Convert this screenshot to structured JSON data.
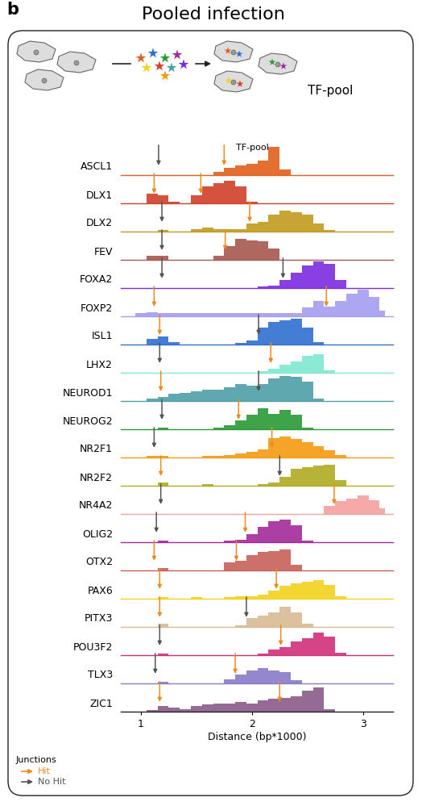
{
  "chart_data": {
    "type": "area",
    "panel": "b",
    "title": "Pooled infection",
    "pool_label": "TF-pool",
    "x_label": "Distance (bp*1000)",
    "x": [
      0.9,
      1.0,
      1.1,
      1.2,
      1.3,
      1.4,
      1.5,
      1.6,
      1.7,
      1.8,
      1.9,
      2.0,
      2.1,
      2.2,
      2.3,
      2.4,
      2.5,
      2.6,
      2.7,
      2.8,
      2.9,
      3.0,
      3.1,
      3.2
    ],
    "xlim": [
      0.82,
      3.27
    ],
    "xticks": [
      1,
      2,
      3
    ],
    "ylim": [
      0,
      1.2
    ],
    "tick_labels": "x",
    "legend": "lower left",
    "junction_legend": {
      "title": "Junctions",
      "hit_label": "Hit",
      "no_hit_label": "No Hit",
      "hit_color": "#f08a1e",
      "no_hit_color": "#555555"
    },
    "series": [
      {
        "name": "ASCL1",
        "color": "#e0601c",
        "values": [
          0,
          0,
          0,
          0,
          0,
          0,
          0,
          0,
          0.1,
          0.25,
          0.35,
          0.4,
          0.5,
          1.0,
          0.2,
          0,
          0,
          0,
          0,
          0,
          0,
          0,
          0,
          0
        ],
        "junctions": [
          {
            "x": 1.16,
            "hit": false
          },
          {
            "x": 1.75,
            "hit": true
          }
        ]
      },
      {
        "name": "DLX1",
        "color": "#d0402a",
        "values": [
          0,
          0,
          0.35,
          0.3,
          0.05,
          0,
          0.3,
          0.6,
          0.7,
          0.8,
          0.6,
          0.05,
          0,
          0,
          0,
          0,
          0,
          0,
          0,
          0,
          0,
          0,
          0,
          0
        ],
        "junctions": [
          {
            "x": 1.12,
            "hit": true
          },
          {
            "x": 1.54,
            "hit": true
          }
        ]
      },
      {
        "name": "DLX2",
        "color": "#c19a1d",
        "values": [
          0,
          0,
          0,
          0.05,
          0,
          0,
          0.1,
          0.15,
          0.1,
          0.1,
          0.1,
          0.3,
          0.35,
          0.6,
          0.75,
          0.7,
          0.6,
          0.3,
          0.05,
          0,
          0,
          0,
          0,
          0
        ],
        "junctions": [
          {
            "x": 1.19,
            "hit": false
          },
          {
            "x": 1.98,
            "hit": true
          }
        ]
      },
      {
        "name": "FEV",
        "color": "#a8564e",
        "values": [
          0,
          0,
          0.15,
          0.15,
          0,
          0,
          0,
          0,
          0.15,
          0.5,
          0.75,
          0.7,
          0.65,
          0.4,
          0,
          0,
          0,
          0,
          0,
          0,
          0,
          0,
          0,
          0
        ],
        "junctions": [
          {
            "x": 1.19,
            "hit": false
          },
          {
            "x": 1.76,
            "hit": true
          }
        ]
      },
      {
        "name": "FOXA2",
        "color": "#7b2be0",
        "values": [
          0,
          0,
          0,
          0,
          0,
          0,
          0,
          0,
          0,
          0,
          0,
          0,
          0.05,
          0.1,
          0.3,
          0.55,
          0.8,
          0.95,
          0.85,
          0.3,
          0,
          0,
          0,
          0
        ],
        "junctions": [
          {
            "x": 1.19,
            "hit": false
          },
          {
            "x": 2.28,
            "hit": false
          }
        ]
      },
      {
        "name": "FOXP2",
        "color": "#a49cf0",
        "values": [
          0,
          0.1,
          0.15,
          0.1,
          0.1,
          0.1,
          0.1,
          0.1,
          0.1,
          0.1,
          0.1,
          0.1,
          0.1,
          0.1,
          0.1,
          0.1,
          0.3,
          0.55,
          0.35,
          0.55,
          0.8,
          0.95,
          0.7,
          0.2
        ],
        "junctions": [
          {
            "x": 1.12,
            "hit": true
          },
          {
            "x": 2.67,
            "hit": true
          }
        ]
      },
      {
        "name": "ISL1",
        "color": "#2e6fd0",
        "values": [
          0,
          0,
          0.2,
          0.3,
          0.1,
          0,
          0,
          0,
          0,
          0,
          0.05,
          0.15,
          0.6,
          0.8,
          0.85,
          0.9,
          0.6,
          0.1,
          0,
          0,
          0,
          0,
          0,
          0
        ],
        "junctions": [
          {
            "x": 1.17,
            "hit": true
          },
          {
            "x": 2.06,
            "hit": false
          }
        ]
      },
      {
        "name": "LHX2",
        "color": "#7ee8d2",
        "values": [
          0,
          0,
          0,
          0,
          0,
          0,
          0,
          0,
          0,
          0,
          0,
          0,
          0.05,
          0.15,
          0.3,
          0.4,
          0.6,
          0.65,
          0.1,
          0,
          0,
          0,
          0,
          0
        ],
        "junctions": [
          {
            "x": 1.17,
            "hit": false
          },
          {
            "x": 2.17,
            "hit": true
          }
        ]
      },
      {
        "name": "NEUROD1",
        "color": "#4f9fa8",
        "values": [
          0,
          0,
          0.1,
          0.15,
          0.25,
          0.3,
          0.35,
          0.4,
          0.4,
          0.5,
          0.6,
          0.55,
          0.6,
          0.8,
          0.9,
          0.85,
          0.7,
          0.1,
          0,
          0,
          0,
          0,
          0,
          0
        ],
        "junctions": [
          {
            "x": 1.18,
            "hit": true
          },
          {
            "x": 2.06,
            "hit": false
          }
        ]
      },
      {
        "name": "NEUROG2",
        "color": "#2a9a35",
        "values": [
          0,
          0,
          0,
          0.05,
          0,
          0,
          0,
          0,
          0.05,
          0.15,
          0.3,
          0.5,
          0.75,
          0.55,
          0.7,
          0.5,
          0.05,
          0,
          0,
          0,
          0,
          0,
          0,
          0
        ],
        "junctions": [
          {
            "x": 1.19,
            "hit": false
          },
          {
            "x": 1.88,
            "hit": true
          }
        ]
      },
      {
        "name": "NR2F1",
        "color": "#f59a10",
        "values": [
          0,
          0,
          0.05,
          0.05,
          0,
          0,
          0,
          0.05,
          0.05,
          0.1,
          0.15,
          0.2,
          0.3,
          0.7,
          0.75,
          0.65,
          0.55,
          0.4,
          0.25,
          0.1,
          0,
          0,
          0,
          0
        ],
        "junctions": [
          {
            "x": 1.12,
            "hit": false
          },
          {
            "x": 2.18,
            "hit": true
          }
        ]
      },
      {
        "name": "NR2F2",
        "color": "#b0aa22",
        "values": [
          0,
          0,
          0,
          0.1,
          0,
          0,
          0,
          0.05,
          0,
          0,
          0,
          0,
          0.05,
          0.1,
          0.3,
          0.6,
          0.65,
          0.7,
          0.75,
          0.2,
          0,
          0,
          0,
          0
        ],
        "junctions": [
          {
            "x": 1.18,
            "hit": true
          },
          {
            "x": 2.25,
            "hit": false
          }
        ]
      },
      {
        "name": "NR4A2",
        "color": "#f4a0a0",
        "values": [
          0,
          0,
          0,
          0,
          0,
          0,
          0,
          0,
          0,
          0,
          0,
          0,
          0,
          0,
          0,
          0,
          0,
          0,
          0.3,
          0.45,
          0.55,
          0.65,
          0.5,
          0.2
        ],
        "junctions": [
          {
            "x": 1.18,
            "hit": false
          },
          {
            "x": 2.74,
            "hit": true
          }
        ]
      },
      {
        "name": "OLIG2",
        "color": "#a22a9a",
        "values": [
          0,
          0,
          0,
          0.05,
          0,
          0,
          0,
          0,
          0,
          0.05,
          0.1,
          0.3,
          0.55,
          0.75,
          0.8,
          0.6,
          0.05,
          0,
          0,
          0,
          0,
          0,
          0,
          0
        ],
        "junctions": [
          {
            "x": 1.14,
            "hit": false
          },
          {
            "x": 1.94,
            "hit": true
          }
        ]
      },
      {
        "name": "OTX2",
        "color": "#c8605a",
        "values": [
          0,
          0,
          0,
          0.1,
          0,
          0,
          0,
          0,
          0,
          0.3,
          0.35,
          0.55,
          0.65,
          0.7,
          0.75,
          0.2,
          0,
          0,
          0,
          0,
          0,
          0,
          0,
          0
        ],
        "junctions": [
          {
            "x": 1.12,
            "hit": true
          },
          {
            "x": 1.86,
            "hit": true
          }
        ]
      },
      {
        "name": "PAX6",
        "color": "#f2d21a",
        "values": [
          0,
          0,
          0,
          0.05,
          0,
          0,
          0.05,
          0,
          0,
          0.05,
          0.1,
          0.1,
          0.15,
          0.3,
          0.45,
          0.55,
          0.6,
          0.65,
          0.5,
          0.1,
          0,
          0,
          0,
          0
        ],
        "junctions": [
          {
            "x": 1.17,
            "hit": true
          },
          {
            "x": 2.22,
            "hit": true
          }
        ]
      },
      {
        "name": "PITX3",
        "color": "#d8bb92",
        "values": [
          0,
          0,
          0,
          0.1,
          0,
          0,
          0,
          0,
          0,
          0,
          0.05,
          0.3,
          0.4,
          0.5,
          0.7,
          0.5,
          0.1,
          0,
          0,
          0,
          0,
          0,
          0,
          0
        ],
        "junctions": [
          {
            "x": 1.17,
            "hit": true
          },
          {
            "x": 1.95,
            "hit": false
          }
        ]
      },
      {
        "name": "POU3F2",
        "color": "#d0307a",
        "values": [
          0,
          0,
          0,
          0.05,
          0,
          0,
          0,
          0,
          0,
          0,
          0,
          0,
          0.05,
          0.2,
          0.3,
          0.5,
          0.6,
          0.8,
          0.65,
          0.1,
          0,
          0,
          0,
          0
        ],
        "junctions": [
          {
            "x": 1.17,
            "hit": false
          },
          {
            "x": 2.26,
            "hit": true
          }
        ]
      },
      {
        "name": "TLX3",
        "color": "#8a7ac8",
        "values": [
          0,
          0,
          0,
          0.05,
          0,
          0,
          0,
          0,
          0,
          0.15,
          0.3,
          0.45,
          0.55,
          0.45,
          0.4,
          0.1,
          0,
          0,
          0,
          0,
          0,
          0,
          0,
          0
        ],
        "junctions": [
          {
            "x": 1.13,
            "hit": false
          },
          {
            "x": 1.85,
            "hit": true
          }
        ]
      },
      {
        "name": "ZIC1",
        "color": "#8a5a8a",
        "values": [
          0,
          0,
          0.05,
          0.2,
          0.15,
          0.1,
          0.2,
          0.25,
          0.3,
          0.3,
          0.35,
          0.3,
          0.4,
          0.45,
          0.5,
          0.55,
          0.75,
          0.85,
          0.1,
          0,
          0,
          0,
          0,
          0
        ],
        "junctions": [
          {
            "x": 1.17,
            "hit": true
          },
          {
            "x": 2.25,
            "hit": true
          }
        ]
      }
    ]
  }
}
